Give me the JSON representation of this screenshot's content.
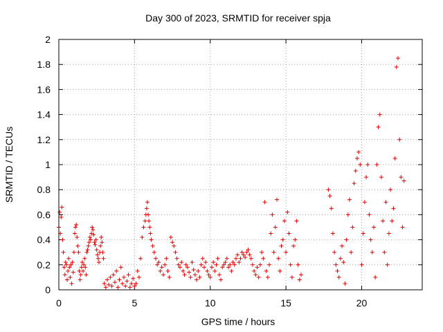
{
  "chart_data": {
    "type": "scatter",
    "title": "Day 300 of 2023, SRMTID for receiver spja",
    "xlabel": "GPS time / hours",
    "ylabel": "SRMTID / TECUs",
    "xlim": [
      0,
      24
    ],
    "ylim": [
      0,
      2
    ],
    "xticks": [
      0,
      5,
      10,
      15,
      20
    ],
    "xtick_labels": [
      "0",
      "5",
      "10",
      "15",
      "20"
    ],
    "yticks": [
      0,
      0.2,
      0.4,
      0.6,
      0.8,
      1,
      1.2,
      1.4,
      1.6,
      1.8,
      2
    ],
    "ytick_labels": [
      "0",
      "0.2",
      "0.4",
      "0.6",
      "0.8",
      "1",
      "1.2",
      "1.4",
      "1.6",
      "1.8",
      "2"
    ],
    "grid": true,
    "marker": "+",
    "marker_color": "#e00000",
    "series": [
      {
        "name": "SRMTID",
        "points": [
          [
            0.0,
            0.5
          ],
          [
            0.05,
            0.62
          ],
          [
            0.1,
            0.45
          ],
          [
            0.15,
            0.58
          ],
          [
            0.2,
            0.66
          ],
          [
            0.25,
            0.4
          ],
          [
            0.3,
            0.3
          ],
          [
            0.35,
            0.18
          ],
          [
            0.4,
            0.12
          ],
          [
            0.45,
            0.22
          ],
          [
            0.5,
            0.2
          ],
          [
            0.55,
            0.08
          ],
          [
            0.6,
            0.15
          ],
          [
            0.65,
            0.25
          ],
          [
            0.7,
            0.18
          ],
          [
            0.75,
            0.1
          ],
          [
            0.8,
            0.2
          ],
          [
            0.85,
            0.05
          ],
          [
            0.9,
            0.22
          ],
          [
            0.95,
            0.14
          ],
          [
            1.0,
            0.3
          ],
          [
            1.05,
            0.45
          ],
          [
            1.1,
            0.5
          ],
          [
            1.15,
            0.52
          ],
          [
            1.2,
            0.42
          ],
          [
            1.25,
            0.35
          ],
          [
            1.3,
            0.3
          ],
          [
            1.35,
            0.15
          ],
          [
            1.4,
            0.08
          ],
          [
            1.45,
            0.12
          ],
          [
            1.5,
            0.18
          ],
          [
            1.55,
            0.22
          ],
          [
            1.6,
            0.15
          ],
          [
            1.65,
            0.2
          ],
          [
            1.7,
            0.25
          ],
          [
            1.75,
            0.18
          ],
          [
            1.8,
            0.12
          ],
          [
            1.85,
            0.3
          ],
          [
            1.9,
            0.32
          ],
          [
            1.95,
            0.35
          ],
          [
            2.0,
            0.38
          ],
          [
            2.05,
            0.42
          ],
          [
            2.1,
            0.4
          ],
          [
            2.15,
            0.45
          ],
          [
            2.2,
            0.5
          ],
          [
            2.25,
            0.48
          ],
          [
            2.3,
            0.44
          ],
          [
            2.35,
            0.38
          ],
          [
            2.4,
            0.36
          ],
          [
            2.45,
            0.4
          ],
          [
            2.5,
            0.32
          ],
          [
            2.55,
            0.28
          ],
          [
            2.6,
            0.25
          ],
          [
            2.65,
            0.22
          ],
          [
            2.7,
            0.3
          ],
          [
            2.75,
            0.35
          ],
          [
            2.8,
            0.42
          ],
          [
            2.85,
            0.38
          ],
          [
            2.9,
            0.3
          ],
          [
            2.95,
            0.25
          ],
          [
            3.0,
            0.05
          ],
          [
            3.1,
            0.02
          ],
          [
            3.2,
            0.08
          ],
          [
            3.3,
            0.04
          ],
          [
            3.4,
            0.1
          ],
          [
            3.5,
            0.03
          ],
          [
            3.6,
            0.12
          ],
          [
            3.7,
            0.06
          ],
          [
            3.8,
            0.15
          ],
          [
            3.9,
            0.02
          ],
          [
            4.0,
            0.08
          ],
          [
            4.1,
            0.18
          ],
          [
            4.2,
            0.05
          ],
          [
            4.3,
            0.1
          ],
          [
            4.4,
            0.03
          ],
          [
            4.5,
            0.07
          ],
          [
            4.6,
            0.12
          ],
          [
            4.7,
            0.02
          ],
          [
            4.8,
            0.05
          ],
          [
            4.9,
            0.09
          ],
          [
            5.0,
            0.03
          ],
          [
            5.1,
            0.05
          ],
          [
            5.2,
            0.15
          ],
          [
            5.3,
            0.1
          ],
          [
            5.4,
            0.25
          ],
          [
            5.5,
            0.42
          ],
          [
            5.6,
            0.5
          ],
          [
            5.7,
            0.55
          ],
          [
            5.75,
            0.6
          ],
          [
            5.8,
            0.65
          ],
          [
            5.85,
            0.7
          ],
          [
            5.9,
            0.6
          ],
          [
            5.95,
            0.55
          ],
          [
            6.0,
            0.5
          ],
          [
            6.05,
            0.45
          ],
          [
            6.1,
            0.4
          ],
          [
            6.2,
            0.35
          ],
          [
            6.3,
            0.3
          ],
          [
            6.4,
            0.25
          ],
          [
            6.5,
            0.2
          ],
          [
            6.6,
            0.22
          ],
          [
            6.7,
            0.15
          ],
          [
            6.8,
            0.18
          ],
          [
            6.9,
            0.12
          ],
          [
            7.0,
            0.2
          ],
          [
            7.1,
            0.25
          ],
          [
            7.2,
            0.15
          ],
          [
            7.3,
            0.1
          ],
          [
            7.4,
            0.42
          ],
          [
            7.5,
            0.38
          ],
          [
            7.6,
            0.35
          ],
          [
            7.7,
            0.3
          ],
          [
            7.8,
            0.25
          ],
          [
            7.9,
            0.2
          ],
          [
            8.0,
            0.18
          ],
          [
            8.1,
            0.22
          ],
          [
            8.2,
            0.15
          ],
          [
            8.3,
            0.12
          ],
          [
            8.4,
            0.2
          ],
          [
            8.5,
            0.18
          ],
          [
            8.6,
            0.14
          ],
          [
            8.7,
            0.1
          ],
          [
            8.8,
            0.22
          ],
          [
            8.9,
            0.16
          ],
          [
            9.0,
            0.12
          ],
          [
            9.1,
            0.08
          ],
          [
            9.2,
            0.15
          ],
          [
            9.3,
            0.1
          ],
          [
            9.4,
            0.2
          ],
          [
            9.5,
            0.25
          ],
          [
            9.6,
            0.18
          ],
          [
            9.7,
            0.22
          ],
          [
            9.8,
            0.15
          ],
          [
            9.9,
            0.12
          ],
          [
            10.0,
            0.1
          ],
          [
            10.1,
            0.18
          ],
          [
            10.2,
            0.22
          ],
          [
            10.3,
            0.15
          ],
          [
            10.4,
            0.2
          ],
          [
            10.5,
            0.25
          ],
          [
            10.6,
            0.12
          ],
          [
            10.7,
            0.08
          ],
          [
            10.8,
            0.18
          ],
          [
            10.9,
            0.2
          ],
          [
            11.0,
            0.22
          ],
          [
            11.1,
            0.25
          ],
          [
            11.2,
            0.18
          ],
          [
            11.3,
            0.2
          ],
          [
            11.4,
            0.15
          ],
          [
            11.5,
            0.22
          ],
          [
            11.6,
            0.2
          ],
          [
            11.7,
            0.25
          ],
          [
            11.8,
            0.28
          ],
          [
            11.9,
            0.22
          ],
          [
            12.0,
            0.25
          ],
          [
            12.1,
            0.3
          ],
          [
            12.2,
            0.28
          ],
          [
            12.3,
            0.26
          ],
          [
            12.4,
            0.3
          ],
          [
            12.5,
            0.32
          ],
          [
            12.6,
            0.28
          ],
          [
            12.7,
            0.25
          ],
          [
            12.8,
            0.2
          ],
          [
            12.9,
            0.15
          ],
          [
            13.0,
            0.12
          ],
          [
            13.1,
            0.18
          ],
          [
            13.2,
            0.1
          ],
          [
            13.3,
            0.2
          ],
          [
            13.4,
            0.3
          ],
          [
            13.5,
            0.25
          ],
          [
            13.6,
            0.7
          ],
          [
            13.7,
            0.15
          ],
          [
            13.8,
            0.1
          ],
          [
            13.9,
            0.2
          ],
          [
            14.0,
            0.45
          ],
          [
            14.1,
            0.6
          ],
          [
            14.2,
            0.3
          ],
          [
            14.3,
            0.5
          ],
          [
            14.4,
            0.72
          ],
          [
            14.5,
            0.25
          ],
          [
            14.6,
            0.15
          ],
          [
            14.7,
            0.35
          ],
          [
            14.8,
            0.4
          ],
          [
            14.9,
            0.55
          ],
          [
            15.0,
            0.3
          ],
          [
            15.1,
            0.62
          ],
          [
            15.2,
            0.45
          ],
          [
            15.3,
            0.2
          ],
          [
            15.4,
            0.1
          ],
          [
            15.5,
            0.35
          ],
          [
            15.6,
            0.4
          ],
          [
            15.7,
            0.55
          ],
          [
            15.8,
            0.2
          ],
          [
            15.9,
            0.08
          ],
          [
            16.0,
            0.12
          ],
          [
            17.8,
            0.8
          ],
          [
            17.9,
            0.75
          ],
          [
            18.0,
            0.65
          ],
          [
            18.1,
            0.45
          ],
          [
            18.2,
            0.3
          ],
          [
            18.3,
            0.2
          ],
          [
            18.4,
            0.15
          ],
          [
            18.5,
            0.1
          ],
          [
            18.6,
            0.25
          ],
          [
            18.7,
            0.35
          ],
          [
            18.8,
            0.22
          ],
          [
            18.9,
            0.05
          ],
          [
            19.0,
            0.4
          ],
          [
            19.1,
            0.6
          ],
          [
            19.2,
            0.72
          ],
          [
            19.3,
            0.3
          ],
          [
            19.4,
            0.5
          ],
          [
            19.5,
            0.85
          ],
          [
            19.6,
            0.95
          ],
          [
            19.7,
            1.05
          ],
          [
            19.8,
            1.1
          ],
          [
            19.9,
            1.0
          ],
          [
            20.0,
            0.2
          ],
          [
            20.1,
            0.45
          ],
          [
            20.2,
            0.7
          ],
          [
            20.3,
            0.9
          ],
          [
            20.4,
            1.0
          ],
          [
            20.5,
            0.6
          ],
          [
            20.6,
            0.4
          ],
          [
            20.7,
            0.3
          ],
          [
            20.8,
            0.5
          ],
          [
            20.9,
            0.1
          ],
          [
            21.0,
            1.0
          ],
          [
            21.1,
            1.3
          ],
          [
            21.2,
            1.4
          ],
          [
            21.3,
            0.9
          ],
          [
            21.4,
            0.55
          ],
          [
            21.5,
            0.3
          ],
          [
            21.6,
            0.7
          ],
          [
            21.7,
            0.2
          ],
          [
            21.8,
            0.45
          ],
          [
            21.9,
            0.8
          ],
          [
            22.0,
            0.55
          ],
          [
            22.1,
            0.65
          ],
          [
            22.2,
            1.05
          ],
          [
            22.3,
            1.78
          ],
          [
            22.4,
            1.85
          ],
          [
            22.5,
            1.2
          ],
          [
            22.6,
            0.9
          ],
          [
            22.7,
            0.5
          ],
          [
            22.8,
            0.87
          ]
        ]
      }
    ]
  }
}
